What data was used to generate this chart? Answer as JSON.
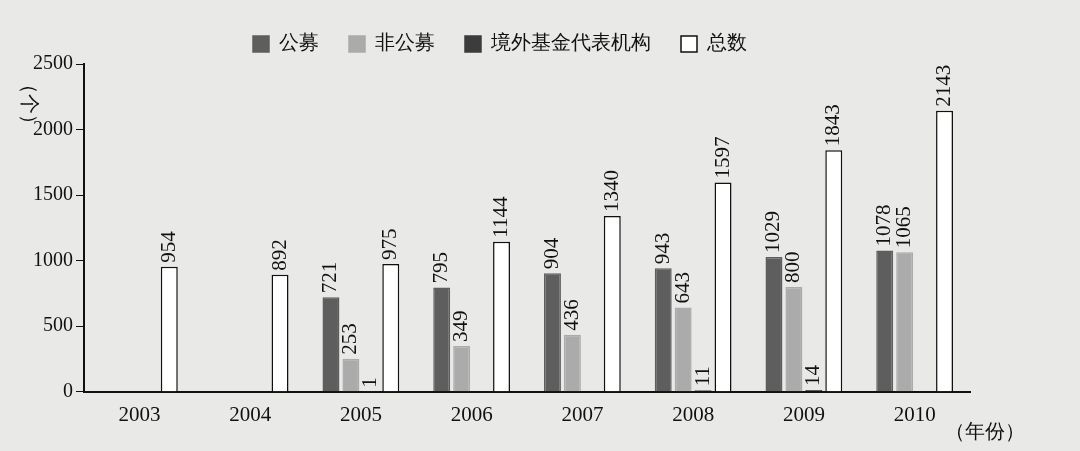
{
  "chart_data": {
    "type": "bar",
    "ylabel": "（个）",
    "xlabel": "（年份）",
    "categories": [
      "2003",
      "2004",
      "2005",
      "2006",
      "2007",
      "2008",
      "2009",
      "2010"
    ],
    "series": [
      {
        "name": "公募",
        "color": "#5e5e5e",
        "values": [
          null,
          null,
          721,
          795,
          904,
          943,
          1029,
          1078
        ]
      },
      {
        "name": "非公募",
        "color": "#ababab",
        "values": [
          null,
          null,
          253,
          349,
          436,
          643,
          800,
          1065
        ]
      },
      {
        "name": "境外基金代表机构",
        "color": "#3c3c3c",
        "values": [
          null,
          null,
          1,
          null,
          null,
          11,
          14,
          null
        ]
      },
      {
        "name": "总数",
        "color": "#ffffff",
        "values": [
          954,
          892,
          975,
          1144,
          1340,
          1597,
          1843,
          2143
        ]
      }
    ],
    "ylim": [
      0,
      2500
    ],
    "yticks": [
      0,
      500,
      1000,
      1500,
      2000,
      2500
    ],
    "grid": false,
    "legend": "top",
    "data_labels": true
  }
}
